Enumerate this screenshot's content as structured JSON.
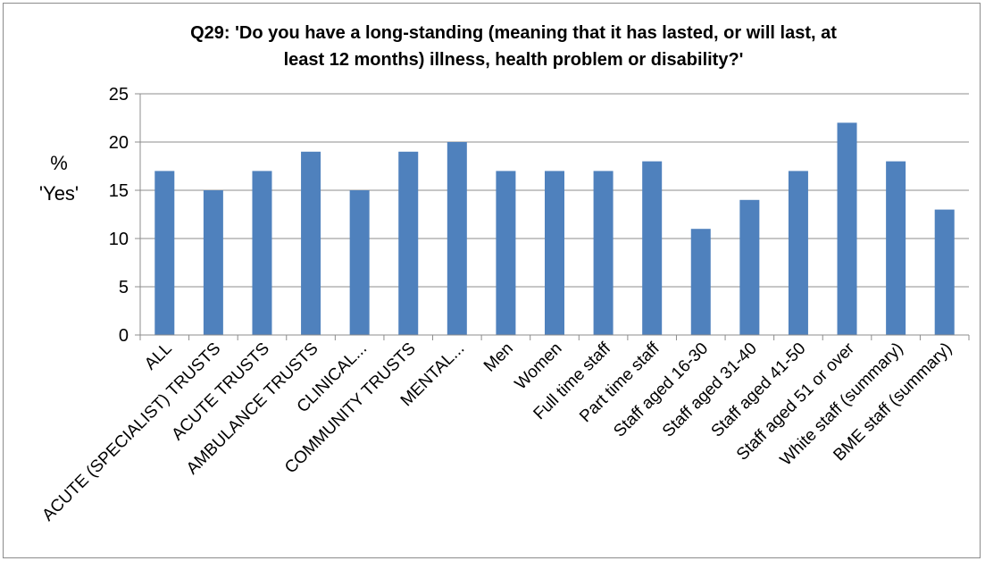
{
  "chart_data": {
    "type": "bar",
    "title_lines": [
      "Q29: 'Do you have a long-standing (meaning that it has lasted, or will last, at",
      "least 12 months) illness, health problem or disability?'"
    ],
    "ylabel_lines": [
      "%",
      "'Yes'"
    ],
    "xlabel": "",
    "ylim": [
      0,
      25
    ],
    "yticks": [
      0,
      5,
      10,
      15,
      20,
      25
    ],
    "grid": true,
    "legend": "none",
    "bar_color": "#4f81bd",
    "categories": [
      "ALL",
      "ACUTE (SPECIALIST) TRUSTS",
      "ACUTE TRUSTS",
      "AMBULANCE TRUSTS",
      "CLINICAL...",
      "COMMUNITY TRUSTS",
      "MENTAL...",
      "Men",
      "Women",
      "Full time staff",
      "Part time staff",
      "Staff aged 16-30",
      "Staff aged 31-40",
      "Staff aged 41-50",
      "Staff aged 51 or over",
      "White staff (summary)",
      "BME staff (summary)"
    ],
    "values": [
      17,
      15,
      17,
      19,
      15,
      19,
      20,
      17,
      17,
      17,
      18,
      11,
      14,
      17,
      22,
      18,
      13
    ]
  }
}
